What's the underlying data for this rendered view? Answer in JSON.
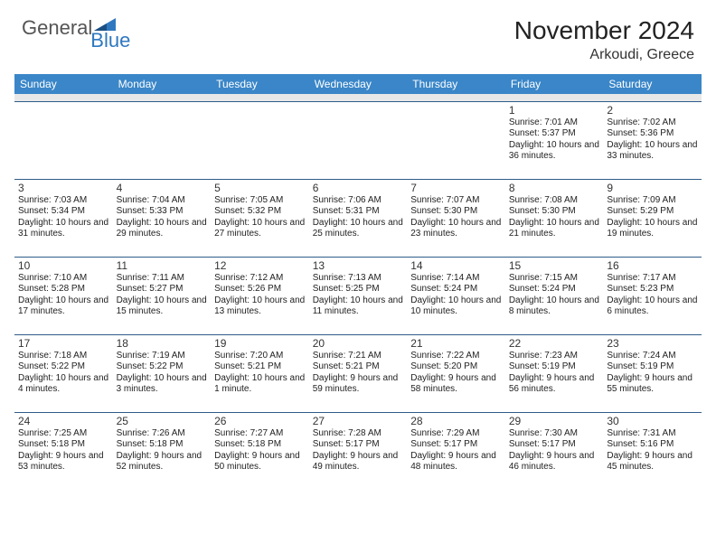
{
  "logo": {
    "general": "General",
    "blue": "Blue"
  },
  "title": "November 2024",
  "location": "Arkoudi, Greece",
  "colors": {
    "header_bg": "#3a86c8",
    "header_text": "#ffffff",
    "rule": "#2f5d8a",
    "sep_bg": "#e8e8e8",
    "logo_blue": "#2f78c0"
  },
  "day_names": [
    "Sunday",
    "Monday",
    "Tuesday",
    "Wednesday",
    "Thursday",
    "Friday",
    "Saturday"
  ],
  "weeks": [
    [
      null,
      null,
      null,
      null,
      null,
      {
        "n": "1",
        "sr": "7:01 AM",
        "ss": "5:37 PM",
        "dl": "10 hours and 36 minutes."
      },
      {
        "n": "2",
        "sr": "7:02 AM",
        "ss": "5:36 PM",
        "dl": "10 hours and 33 minutes."
      }
    ],
    [
      {
        "n": "3",
        "sr": "7:03 AM",
        "ss": "5:34 PM",
        "dl": "10 hours and 31 minutes."
      },
      {
        "n": "4",
        "sr": "7:04 AM",
        "ss": "5:33 PM",
        "dl": "10 hours and 29 minutes."
      },
      {
        "n": "5",
        "sr": "7:05 AM",
        "ss": "5:32 PM",
        "dl": "10 hours and 27 minutes."
      },
      {
        "n": "6",
        "sr": "7:06 AM",
        "ss": "5:31 PM",
        "dl": "10 hours and 25 minutes."
      },
      {
        "n": "7",
        "sr": "7:07 AM",
        "ss": "5:30 PM",
        "dl": "10 hours and 23 minutes."
      },
      {
        "n": "8",
        "sr": "7:08 AM",
        "ss": "5:30 PM",
        "dl": "10 hours and 21 minutes."
      },
      {
        "n": "9",
        "sr": "7:09 AM",
        "ss": "5:29 PM",
        "dl": "10 hours and 19 minutes."
      }
    ],
    [
      {
        "n": "10",
        "sr": "7:10 AM",
        "ss": "5:28 PM",
        "dl": "10 hours and 17 minutes."
      },
      {
        "n": "11",
        "sr": "7:11 AM",
        "ss": "5:27 PM",
        "dl": "10 hours and 15 minutes."
      },
      {
        "n": "12",
        "sr": "7:12 AM",
        "ss": "5:26 PM",
        "dl": "10 hours and 13 minutes."
      },
      {
        "n": "13",
        "sr": "7:13 AM",
        "ss": "5:25 PM",
        "dl": "10 hours and 11 minutes."
      },
      {
        "n": "14",
        "sr": "7:14 AM",
        "ss": "5:24 PM",
        "dl": "10 hours and 10 minutes."
      },
      {
        "n": "15",
        "sr": "7:15 AM",
        "ss": "5:24 PM",
        "dl": "10 hours and 8 minutes."
      },
      {
        "n": "16",
        "sr": "7:17 AM",
        "ss": "5:23 PM",
        "dl": "10 hours and 6 minutes."
      }
    ],
    [
      {
        "n": "17",
        "sr": "7:18 AM",
        "ss": "5:22 PM",
        "dl": "10 hours and 4 minutes."
      },
      {
        "n": "18",
        "sr": "7:19 AM",
        "ss": "5:22 PM",
        "dl": "10 hours and 3 minutes."
      },
      {
        "n": "19",
        "sr": "7:20 AM",
        "ss": "5:21 PM",
        "dl": "10 hours and 1 minute."
      },
      {
        "n": "20",
        "sr": "7:21 AM",
        "ss": "5:21 PM",
        "dl": "9 hours and 59 minutes."
      },
      {
        "n": "21",
        "sr": "7:22 AM",
        "ss": "5:20 PM",
        "dl": "9 hours and 58 minutes."
      },
      {
        "n": "22",
        "sr": "7:23 AM",
        "ss": "5:19 PM",
        "dl": "9 hours and 56 minutes."
      },
      {
        "n": "23",
        "sr": "7:24 AM",
        "ss": "5:19 PM",
        "dl": "9 hours and 55 minutes."
      }
    ],
    [
      {
        "n": "24",
        "sr": "7:25 AM",
        "ss": "5:18 PM",
        "dl": "9 hours and 53 minutes."
      },
      {
        "n": "25",
        "sr": "7:26 AM",
        "ss": "5:18 PM",
        "dl": "9 hours and 52 minutes."
      },
      {
        "n": "26",
        "sr": "7:27 AM",
        "ss": "5:18 PM",
        "dl": "9 hours and 50 minutes."
      },
      {
        "n": "27",
        "sr": "7:28 AM",
        "ss": "5:17 PM",
        "dl": "9 hours and 49 minutes."
      },
      {
        "n": "28",
        "sr": "7:29 AM",
        "ss": "5:17 PM",
        "dl": "9 hours and 48 minutes."
      },
      {
        "n": "29",
        "sr": "7:30 AM",
        "ss": "5:17 PM",
        "dl": "9 hours and 46 minutes."
      },
      {
        "n": "30",
        "sr": "7:31 AM",
        "ss": "5:16 PM",
        "dl": "9 hours and 45 minutes."
      }
    ]
  ],
  "labels": {
    "sunrise": "Sunrise: ",
    "sunset": "Sunset: ",
    "daylight": "Daylight: "
  }
}
